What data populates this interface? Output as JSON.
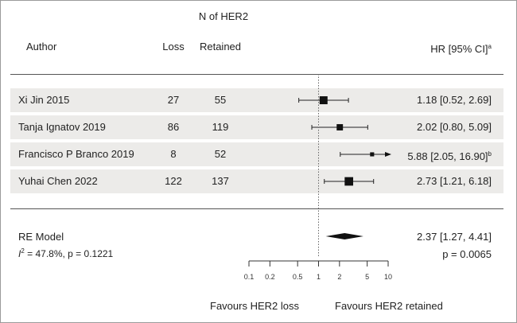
{
  "header": {
    "n_group_label": "N of HER2",
    "author_label": "Author",
    "loss_label": "Loss",
    "retained_label": "Retained",
    "hr_label": "HR [95% CI]",
    "hr_sup": "a"
  },
  "chart_data": {
    "type": "forest",
    "x_scale": "log",
    "xlim": [
      0.1,
      10
    ],
    "reference_line": 1,
    "ticks": [
      {
        "value": 0.1,
        "label": "0.1"
      },
      {
        "value": 0.2,
        "label": "0.2"
      },
      {
        "value": 0.5,
        "label": "0.5"
      },
      {
        "value": 1,
        "label": "1"
      },
      {
        "value": 2,
        "label": "2"
      },
      {
        "value": 5,
        "label": "5"
      },
      {
        "value": 10,
        "label": "10"
      }
    ],
    "studies": [
      {
        "author": "Xi Jin 2015",
        "loss": "27",
        "retained": "55",
        "hr": 1.18,
        "lo": 0.52,
        "hi": 2.69,
        "hr_text": "1.18 [0.52,  2.69]",
        "sup": "",
        "weight": 1.0
      },
      {
        "author": "Tanja Ignatov 2019",
        "loss": "86",
        "retained": "119",
        "hr": 2.02,
        "lo": 0.8,
        "hi": 5.09,
        "hr_text": "2.02 [0.80,  5.09]",
        "sup": "",
        "weight": 0.7
      },
      {
        "author": "Francisco P Branco 2019",
        "loss": "8",
        "retained": "52",
        "hr": 5.88,
        "lo": 2.05,
        "hi": 16.9,
        "hr_text": "5.88 [2.05, 16.90]",
        "sup": "b",
        "weight": 0.3
      },
      {
        "author": "Yuhai Chen 2022",
        "loss": "122",
        "retained": "137",
        "hr": 2.73,
        "lo": 1.21,
        "hi": 6.18,
        "hr_text": "2.73 [1.21,  6.18]",
        "sup": "",
        "weight": 1.1
      }
    ],
    "summary": {
      "label": "RE Model",
      "hr": 2.37,
      "lo": 1.27,
      "hi": 4.41,
      "hr_text": "2.37 [1.27,  4.41]",
      "i2_text": "= 47.8%, p = 0.1221",
      "i2_symbol": "I",
      "p_text": "p = 0.0065"
    },
    "favours_left": "Favours HER2 loss",
    "favours_right": "Favours HER2 retained"
  }
}
